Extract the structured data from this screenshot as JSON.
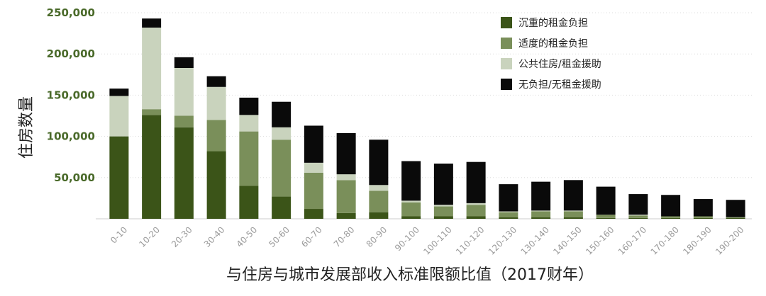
{
  "chart_data": {
    "type": "bar",
    "stacked": true,
    "xlabel": "与住房与城市发展部收入标准限额比值（2017财年）",
    "ylabel": "住房数量",
    "ylim": [
      0,
      250000
    ],
    "yticks": [
      50000,
      100000,
      150000,
      200000,
      250000
    ],
    "ytick_labels": [
      "50,000",
      "100,000",
      "150,000",
      "200,000",
      "250,000"
    ],
    "grid": true,
    "legend_position": "top-right",
    "categories": [
      "0-10",
      "10-20",
      "20-30",
      "30-40",
      "40-50",
      "50-60",
      "60-70",
      "70-80",
      "80-90",
      "90-100",
      "100-110",
      "110-120",
      "120-130",
      "130-140",
      "140-150",
      "150-160",
      "160-170",
      "170-180",
      "180-190",
      "190-200"
    ],
    "series": [
      {
        "name": "沉重的租金负担",
        "color": "#3b5418",
        "values": [
          100000,
          126000,
          111000,
          82000,
          40000,
          27000,
          12000,
          7000,
          8000,
          3000,
          3000,
          3000,
          2000,
          2000,
          2000,
          1000,
          1000,
          1000,
          1000,
          1000
        ]
      },
      {
        "name": "适度的租金负担",
        "color": "#7a8f5a",
        "values": [
          0,
          7000,
          14000,
          38000,
          66000,
          69000,
          44000,
          40000,
          26000,
          17000,
          12000,
          14000,
          6000,
          7000,
          7000,
          4000,
          3000,
          2000,
          2000,
          1000
        ]
      },
      {
        "name": "公共住房/租金援助",
        "color": "#c9d3bd",
        "values": [
          49000,
          99000,
          58000,
          40000,
          20000,
          15000,
          12000,
          7000,
          7000,
          2000,
          2000,
          2000,
          1000,
          1000,
          1000,
          0,
          1000,
          0,
          0,
          0
        ]
      },
      {
        "name": "无负担/无租金援助",
        "color": "#0a0a0a",
        "values": [
          9000,
          11000,
          13000,
          13000,
          21000,
          31000,
          45000,
          50000,
          55000,
          48000,
          50000,
          50000,
          33000,
          35000,
          37000,
          34000,
          25000,
          26000,
          21000,
          21000
        ]
      }
    ]
  }
}
